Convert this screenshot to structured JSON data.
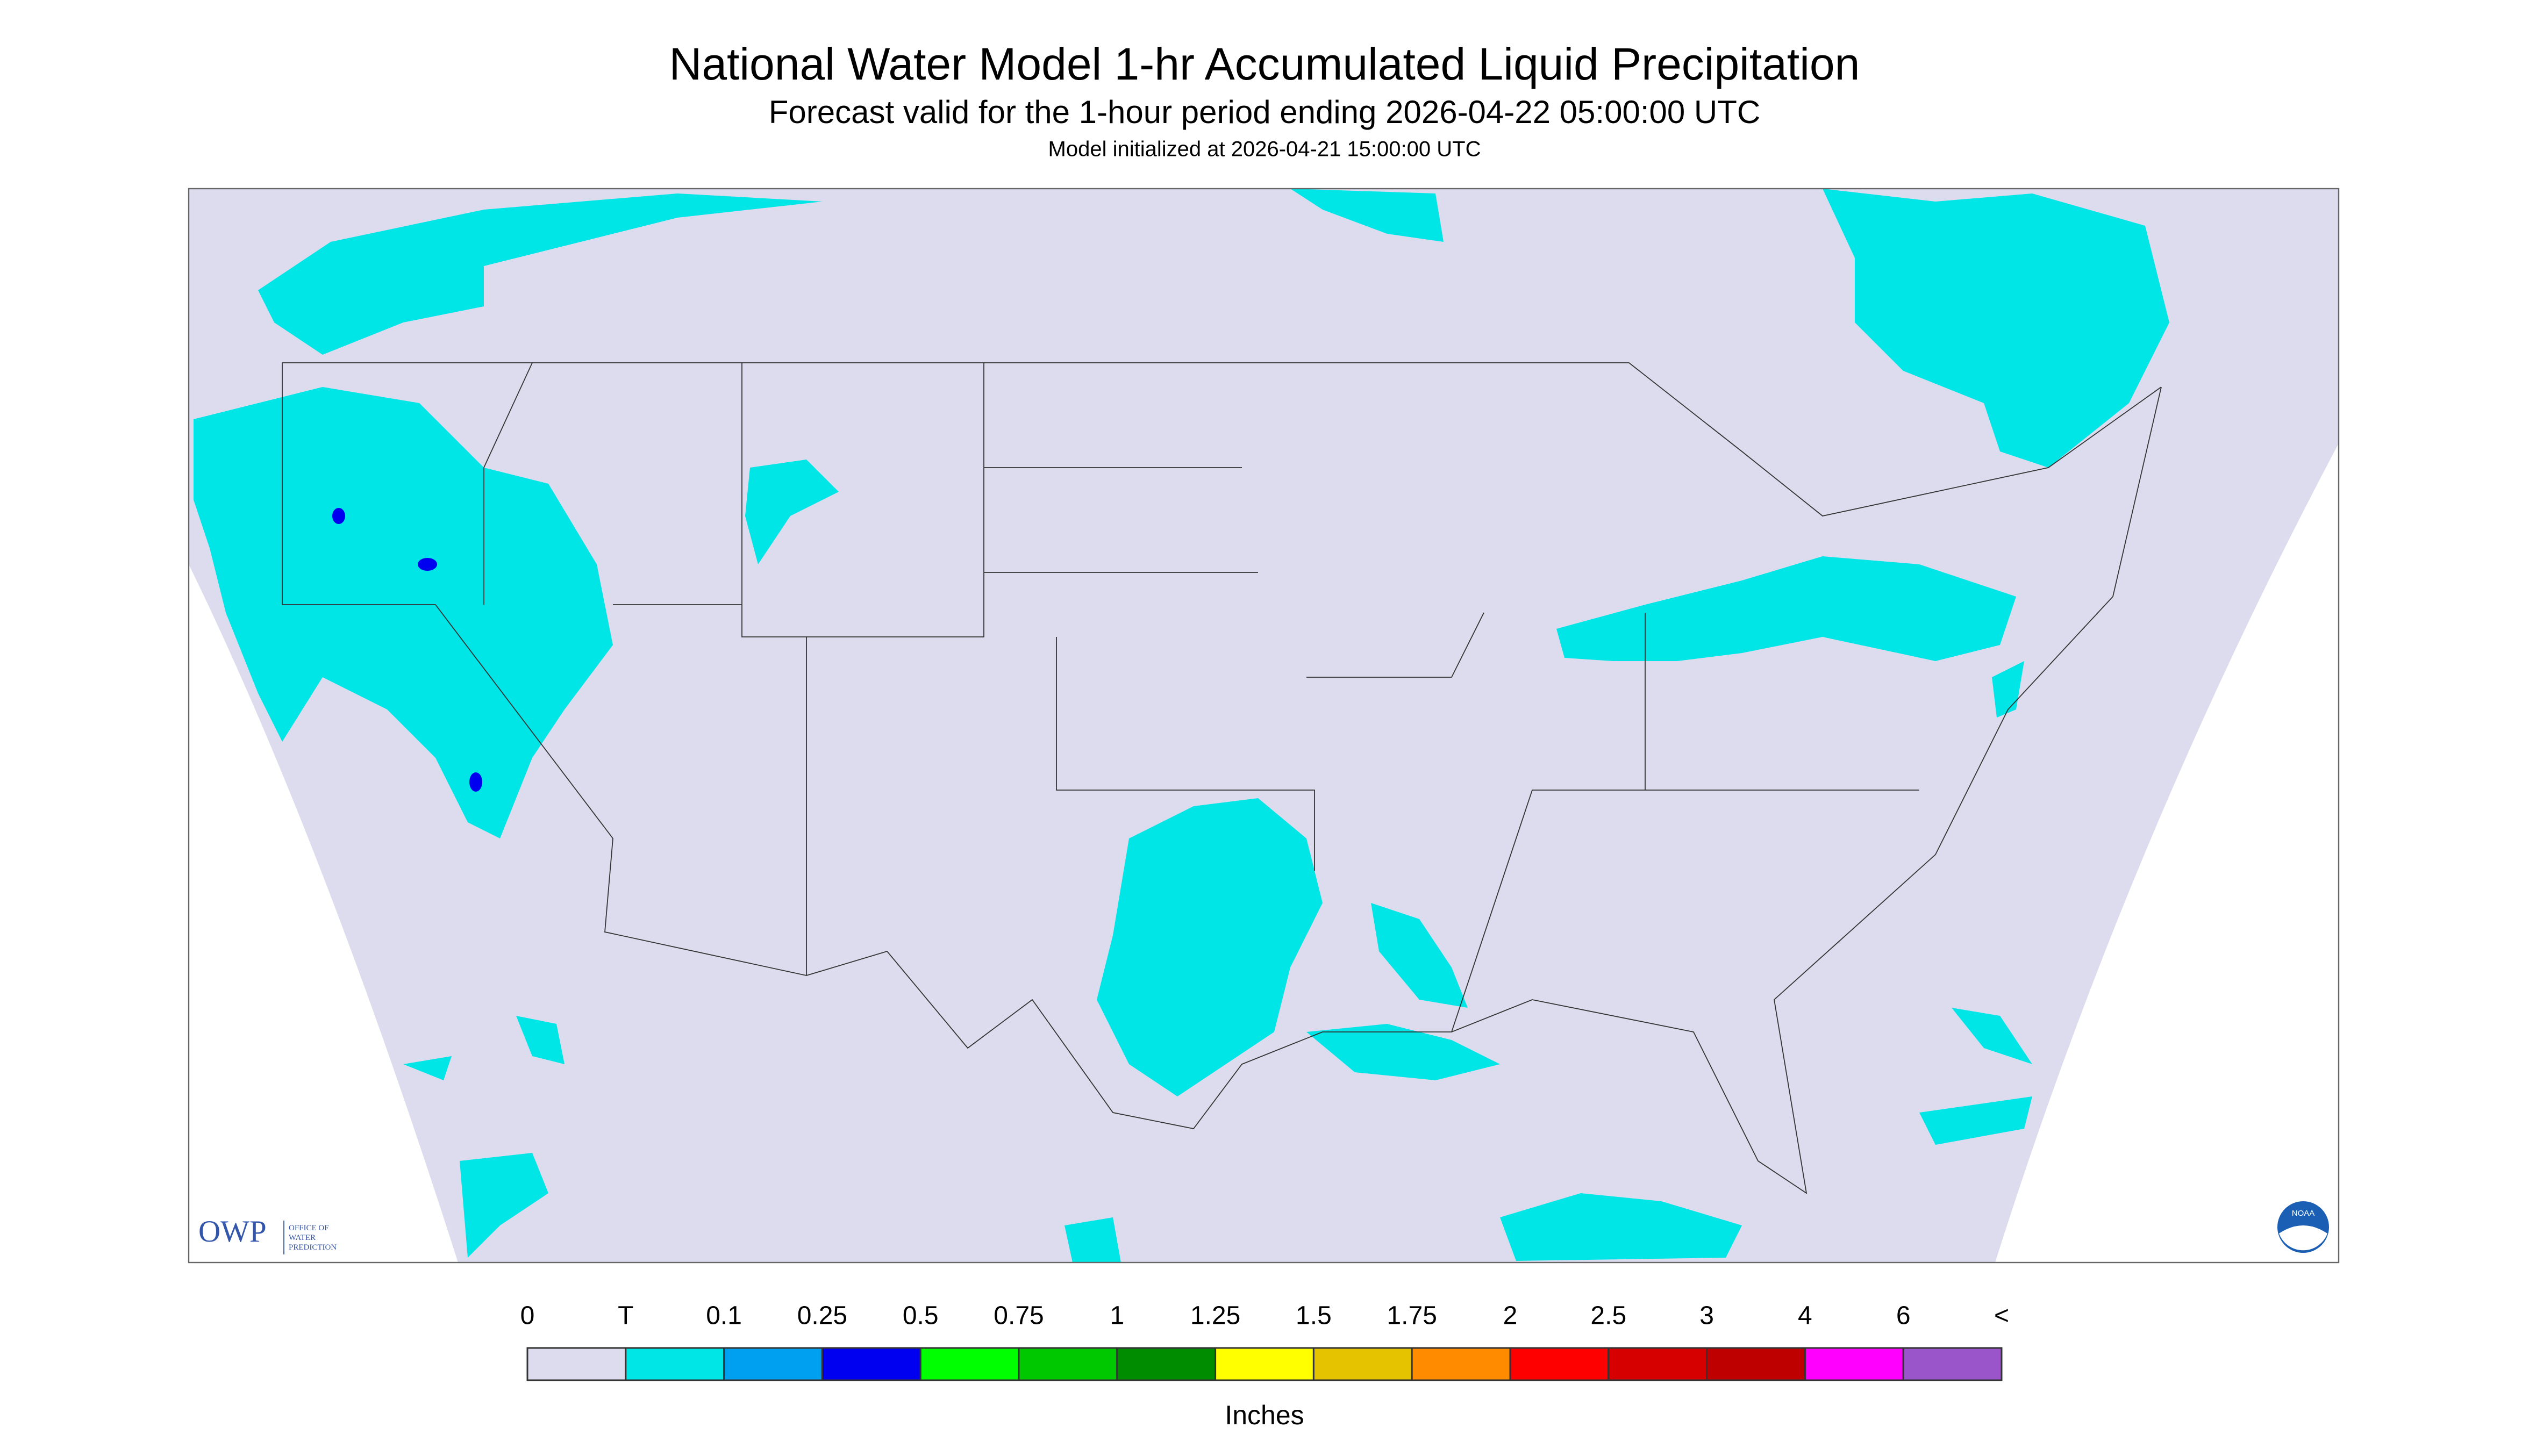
{
  "header": {
    "title": "National Water Model 1-hr Accumulated Liquid Precipitation",
    "subtitle": "Forecast valid for the 1-hour period ending 2026-04-22 05:00:00 UTC",
    "note": "Model initialized at 2026-04-21 15:00:00 UTC"
  },
  "legend": {
    "labels": [
      "0",
      "T",
      "0.1",
      "0.25",
      "0.5",
      "0.75",
      "1",
      "1.25",
      "1.5",
      "1.75",
      "2",
      "2.5",
      "3",
      "4",
      "6",
      "<"
    ],
    "colors": [
      "#dcdcee",
      "#00e5e5",
      "#00a0f0",
      "#0000f0",
      "#00ff00",
      "#00c800",
      "#008c00",
      "#ffff00",
      "#e6c300",
      "#ff8c00",
      "#ff0000",
      "#d70000",
      "#be0000",
      "#ff00ff",
      "#9955c9"
    ],
    "unit": "Inches"
  },
  "logo": {
    "abbr": "OWP",
    "name": [
      "OFFICE OF",
      "WATER",
      "PREDICTION"
    ],
    "agency": "NOAA"
  }
}
